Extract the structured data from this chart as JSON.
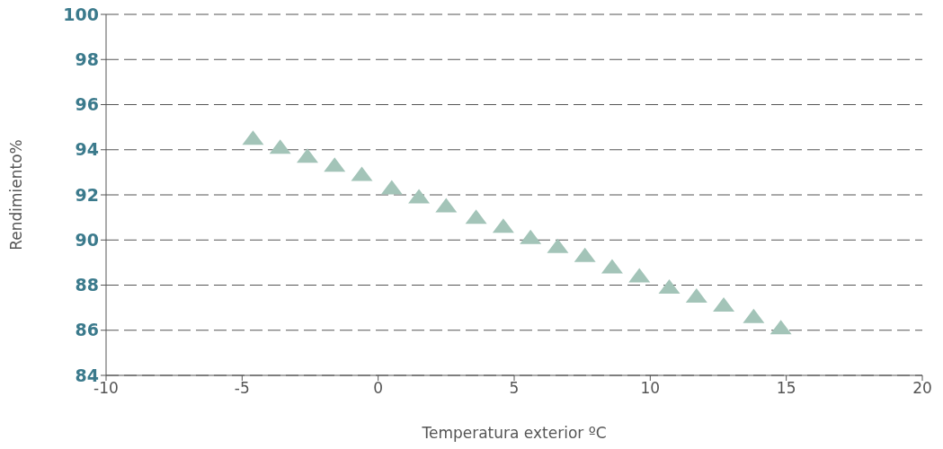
{
  "chart_data": {
    "type": "scatter",
    "xlabel": "Temperatura exterior ºC",
    "ylabel": "Rendimiento%",
    "x": [
      -4.6,
      -3.6,
      -2.6,
      -1.6,
      -0.6,
      0.5,
      1.5,
      2.5,
      3.6,
      4.6,
      5.6,
      6.6,
      7.6,
      8.6,
      9.6,
      10.7,
      11.7,
      12.7,
      13.8,
      14.8
    ],
    "values": [
      94.5,
      94.1,
      93.7,
      93.3,
      92.9,
      92.3,
      91.9,
      91.5,
      91.0,
      90.6,
      90.1,
      89.7,
      89.3,
      88.8,
      88.4,
      87.9,
      87.5,
      87.1,
      86.6,
      86.1
    ],
    "color": "#a3c4b8",
    "marker": "triangle",
    "grid": "y",
    "line_style": "dashed",
    "xlim": [
      -10,
      20
    ],
    "xticks": [
      -10,
      -5,
      0,
      5,
      10,
      15,
      20
    ],
    "ylim": [
      84,
      100
    ],
    "yticks": [
      84,
      86,
      88,
      90,
      92,
      94,
      96,
      98,
      100
    ]
  }
}
